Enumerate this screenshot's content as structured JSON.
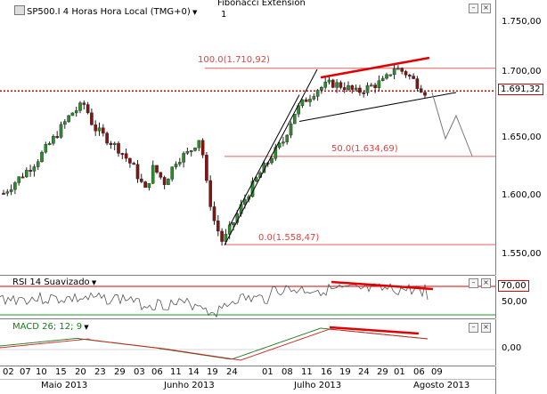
{
  "header": {
    "symbol": "SP500.I 4 Horas Hora Local (TMG+0)",
    "indicator": "Fibonacci Extension",
    "indicator_value": "1"
  },
  "price_axis": {
    "labels": [
      "1.750,00",
      "1.700,00",
      "1.650,00",
      "1.600,00",
      "1.550,00"
    ],
    "current_price": "1.691,32"
  },
  "fib_levels": [
    {
      "label": "100.0(1.710,92)"
    },
    {
      "label": "50.0(1.634,69)"
    },
    {
      "label": "0.0(1.558,47)"
    }
  ],
  "rsi": {
    "title": "RSI 14 Suavizado",
    "level_high": "70,00",
    "level_mid": "50,00"
  },
  "macd": {
    "title": "MACD 26; 12; 9",
    "zero_label": "0,00"
  },
  "x_axis": {
    "days": [
      "02",
      "07",
      "10",
      "15",
      "20",
      "23",
      "29",
      "03",
      "06",
      "11",
      "14",
      "19",
      "24",
      "01",
      "08",
      "11",
      "16",
      "19",
      "24",
      "29",
      "01",
      "06",
      "09"
    ],
    "months": [
      "Maio 2013",
      "Junho 2013",
      "Julho 2013",
      "Agosto 2013"
    ]
  },
  "colors": {
    "bull": "#2e8b2e",
    "bear": "#8b1010",
    "fib": "#e86060",
    "price_line": "#d40000",
    "trend": "#e00000"
  }
}
